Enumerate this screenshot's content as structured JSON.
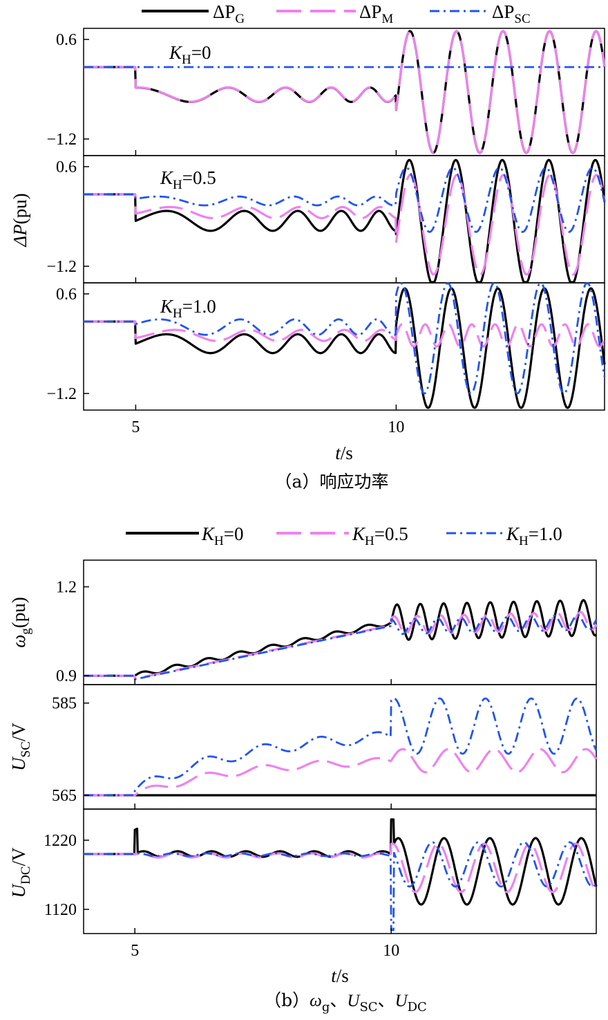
{
  "figure_a": {
    "caption": "（a）响应功率",
    "ylabel_var": "ΔP",
    "ylabel_unit": "(pu)",
    "xlabel_var": "t",
    "xlabel_unit": "/s",
    "legend": [
      {
        "delta": "ΔP",
        "sub": "G"
      },
      {
        "delta": "ΔP",
        "sub": "M"
      },
      {
        "delta": "ΔP",
        "sub": "SC"
      }
    ],
    "panels": [
      {
        "k_var": "K",
        "k_sub": "H",
        "k_val": "=0"
      },
      {
        "k_var": "K",
        "k_sub": "H",
        "k_val": "=0.5"
      },
      {
        "k_var": "K",
        "k_sub": "H",
        "k_val": "=1.0"
      }
    ]
  },
  "figure_b": {
    "caption_prefix": "（b）",
    "caption_omega": "ω",
    "caption_omega_sub": "g",
    "caption_sep1": "、",
    "caption_usc": "U",
    "caption_usc_sub": "SC",
    "caption_sep2": "、",
    "caption_udc": "U",
    "caption_udc_sub": "DC",
    "legend": [
      {
        "var": "K",
        "sub": "H",
        "val": "=0"
      },
      {
        "var": "K",
        "sub": "H",
        "val": "=0.5"
      },
      {
        "var": "K",
        "sub": "H",
        "val": "=1.0"
      }
    ],
    "ylabels": [
      {
        "var": "ω",
        "sub": "g",
        "unit": "(pu)"
      },
      {
        "var": "U",
        "sub": "SC",
        "unit": "/V"
      },
      {
        "var": "U",
        "sub": "DC",
        "unit": "/V"
      }
    ],
    "xlabel_var": "t",
    "xlabel_unit": "/s"
  },
  "colors": {
    "G": "#000000",
    "M": "#ee82ee",
    "SC": "#2255ee"
  },
  "chart_data": [
    {
      "type": "line",
      "x_range": [
        4,
        14
      ],
      "x_ticks": [
        "5",
        "10"
      ],
      "y_range": [
        -1.5,
        0.8
      ],
      "y_ticks": [
        "0.6",
        "−1.2"
      ],
      "y_tick_values": [
        0.6,
        -1.2
      ],
      "series": [
        {
          "name": "ΔP_G",
          "kind": "G",
          "desc": "step to -0.25 at t=5 then oscillation ±0.15 grows in frequency; after t=10 swings between about -1.5 and 0.75"
        },
        {
          "name": "ΔP_M",
          "kind": "M",
          "desc": "overlaps ΔP_G"
        },
        {
          "name": "ΔP_SC",
          "kind": "SC",
          "values_note": "constant 0 (about 0.1 level)"
        }
      ]
    },
    {
      "type": "line",
      "x_range": [
        4,
        14
      ],
      "x_ticks": [
        "5",
        "10"
      ],
      "y_range": [
        -1.5,
        0.8
      ],
      "y_ticks": [
        "0.6",
        "−1.2"
      ],
      "y_tick_values": [
        0.6,
        -1.2
      ],
      "series": [
        {
          "name": "ΔP_G",
          "kind": "G",
          "desc": "oscillation around -0.35; after t=10 swings -1.5 to 0.75"
        },
        {
          "name": "ΔP_M",
          "kind": "M",
          "desc": "smaller oscillation; after t=10 swings -1.35 to 0.4"
        },
        {
          "name": "ΔP_SC",
          "kind": "SC",
          "desc": "oscillation around -0.05; after t=10 swings -0.6 to 0.6"
        }
      ]
    },
    {
      "type": "line",
      "x_range": [
        4,
        14
      ],
      "x_ticks": [
        "5",
        "10"
      ],
      "y_range": [
        -1.5,
        0.8
      ],
      "y_ticks": [
        "0.6",
        "−1.2"
      ],
      "y_tick_values": [
        0.6,
        -1.2
      ],
      "series": [
        {
          "name": "ΔP_G",
          "kind": "G",
          "desc": "oscillation around -0.3; after t=10 swings -1.45 to 0.7"
        },
        {
          "name": "ΔP_M",
          "kind": "M",
          "desc": "after t=10 small oscillation around -0.1"
        },
        {
          "name": "ΔP_SC",
          "kind": "SC",
          "desc": "after t=10 swings -1.2 to 0.8"
        }
      ]
    },
    {
      "type": "line",
      "x_range": [
        4,
        14
      ],
      "x_ticks": [
        "5",
        "10"
      ],
      "y_range": [
        0.87,
        1.29
      ],
      "y_ticks": [
        "1.2",
        "0.9"
      ],
      "y_tick_values": [
        1.2,
        0.9
      ],
      "series": [
        {
          "name": "K_H=0",
          "kind": "G",
          "desc": "0.9 until t=5, ramps to about 1.08 at t=10, then oscillates 1.03 to 1.2"
        },
        {
          "name": "K_H=0.5",
          "kind": "M"
        },
        {
          "name": "K_H=1.0",
          "kind": "SC"
        }
      ]
    },
    {
      "type": "line",
      "x_range": [
        4,
        14
      ],
      "x_ticks": [],
      "y_range": [
        562,
        589
      ],
      "y_ticks": [
        "585",
        "565"
      ],
      "y_tick_values": [
        585,
        565
      ],
      "series": [
        {
          "name": "K_H=0",
          "kind": "G",
          "values_note": "constant 565"
        },
        {
          "name": "K_H=0.5",
          "kind": "M",
          "desc": "rises to about 573; after t=10 oscillates 570-575"
        },
        {
          "name": "K_H=1.0",
          "kind": "SC",
          "desc": "rises to about 579; after t=10 oscillates 574-586"
        }
      ]
    },
    {
      "type": "line",
      "x_range": [
        4,
        14
      ],
      "x_ticks": [
        "5",
        "10"
      ],
      "y_range": [
        1085,
        1265
      ],
      "y_ticks": [
        "1220",
        "1120"
      ],
      "y_tick_values": [
        1220,
        1120
      ],
      "series": [
        {
          "name": "K_H=0",
          "kind": "G",
          "desc": "about 1200 with spike at t=5; after t=10 oscillates 1125 to 1222"
        },
        {
          "name": "K_H=0.5",
          "kind": "M"
        },
        {
          "name": "K_H=1.0",
          "kind": "SC",
          "desc": "dip to about 1090 at t=10"
        }
      ]
    }
  ]
}
